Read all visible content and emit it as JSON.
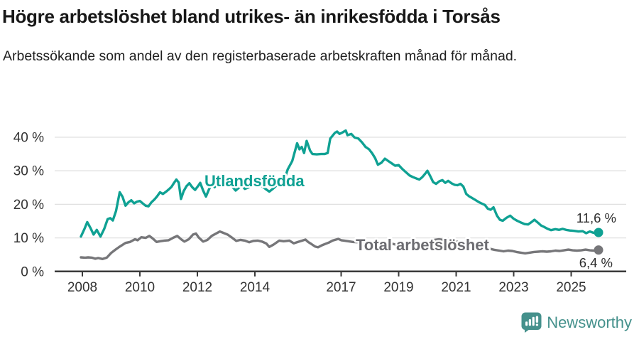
{
  "header": {
    "title": "Högre arbetslöshet bland utrikes- än inrikesfödda i Torsås",
    "subtitle": "Arbetssökande som andel av den registerbaserade arbetskraften månad för månad."
  },
  "footer": {
    "brand": "Newsworthy",
    "logo_icon": "newsworthy-speech-bubble-bar-chart-icon",
    "brand_color": "#45918c"
  },
  "chart_data": {
    "type": "line",
    "unit": "%",
    "grid": true,
    "x_axis": {
      "ticks": [
        2008,
        2010,
        2012,
        2014,
        2017,
        2019,
        2021,
        2023,
        2025
      ],
      "tick_labels": [
        "2008",
        "2010",
        "2012",
        "2014",
        "2017",
        "2019",
        "2021",
        "2023",
        "2025"
      ],
      "range": [
        2007.8,
        2026.3
      ]
    },
    "y_axis": {
      "ticks": [
        0,
        10,
        20,
        30,
        40
      ],
      "tick_labels": [
        "0 %",
        "10 %",
        "20 %",
        "30 %",
        "40 %"
      ],
      "range": [
        0,
        43
      ]
    },
    "series": [
      {
        "name": "Utlandsfödda",
        "color": "#0fa193",
        "label_color": "#0fa193",
        "end_label": "11,6 %",
        "end_value": 11.6,
        "points": [
          [
            2007.95,
            10.4
          ],
          [
            2008.08,
            12.8
          ],
          [
            2008.17,
            14.7
          ],
          [
            2008.28,
            13.0
          ],
          [
            2008.39,
            11.0
          ],
          [
            2008.5,
            12.4
          ],
          [
            2008.63,
            10.4
          ],
          [
            2008.76,
            12.7
          ],
          [
            2008.88,
            15.6
          ],
          [
            2008.97,
            15.9
          ],
          [
            2009.06,
            15.2
          ],
          [
            2009.17,
            18.0
          ],
          [
            2009.3,
            23.6
          ],
          [
            2009.4,
            22.2
          ],
          [
            2009.5,
            19.6
          ],
          [
            2009.6,
            20.6
          ],
          [
            2009.7,
            21.2
          ],
          [
            2009.8,
            20.3
          ],
          [
            2009.9,
            20.8
          ],
          [
            2010.0,
            21.0
          ],
          [
            2010.1,
            20.3
          ],
          [
            2010.2,
            19.6
          ],
          [
            2010.3,
            19.4
          ],
          [
            2010.4,
            20.6
          ],
          [
            2010.5,
            21.4
          ],
          [
            2010.6,
            22.4
          ],
          [
            2010.7,
            23.6
          ],
          [
            2010.8,
            23.1
          ],
          [
            2010.9,
            23.7
          ],
          [
            2011.0,
            24.4
          ],
          [
            2011.1,
            25.2
          ],
          [
            2011.18,
            26.3
          ],
          [
            2011.27,
            27.4
          ],
          [
            2011.35,
            26.5
          ],
          [
            2011.43,
            21.6
          ],
          [
            2011.52,
            23.9
          ],
          [
            2011.62,
            25.4
          ],
          [
            2011.72,
            26.3
          ],
          [
            2011.82,
            25.1
          ],
          [
            2011.92,
            24.3
          ],
          [
            2012.02,
            25.4
          ],
          [
            2012.1,
            26.4
          ],
          [
            2012.2,
            24.1
          ],
          [
            2012.3,
            22.3
          ],
          [
            2012.4,
            24.4
          ],
          [
            2012.5,
            26.0
          ],
          [
            2012.6,
            25.1
          ],
          [
            2012.7,
            26.4
          ],
          [
            2012.8,
            27.1
          ],
          [
            2012.9,
            26.2
          ],
          [
            2013.0,
            26.6
          ],
          [
            2013.1,
            26.1
          ],
          [
            2013.2,
            25.4
          ],
          [
            2013.33,
            24.1
          ],
          [
            2013.45,
            25.0
          ],
          [
            2013.55,
            25.6
          ],
          [
            2013.65,
            24.6
          ],
          [
            2013.8,
            25.1
          ],
          [
            2013.9,
            26.1
          ],
          [
            2014.0,
            26.6
          ],
          [
            2014.1,
            26.0
          ],
          [
            2014.25,
            25.4
          ],
          [
            2014.4,
            24.4
          ],
          [
            2014.5,
            23.8
          ],
          [
            2014.62,
            24.6
          ],
          [
            2014.75,
            25.6
          ],
          [
            2014.85,
            26.0
          ],
          [
            2014.93,
            26.2
          ],
          [
            2015.05,
            28.0
          ],
          [
            2015.14,
            30.4
          ],
          [
            2015.3,
            32.9
          ],
          [
            2015.47,
            38.2
          ],
          [
            2015.55,
            36.4
          ],
          [
            2015.63,
            37.1
          ],
          [
            2015.71,
            35.3
          ],
          [
            2015.8,
            38.9
          ],
          [
            2015.92,
            36.0
          ],
          [
            2016.0,
            35.0
          ],
          [
            2016.15,
            34.9
          ],
          [
            2016.3,
            35.0
          ],
          [
            2016.42,
            35.0
          ],
          [
            2016.53,
            35.3
          ],
          [
            2016.62,
            39.6
          ],
          [
            2016.78,
            41.3
          ],
          [
            2016.86,
            41.7
          ],
          [
            2016.94,
            41.0
          ],
          [
            2017.02,
            41.3
          ],
          [
            2017.1,
            41.7
          ],
          [
            2017.16,
            42.0
          ],
          [
            2017.22,
            40.6
          ],
          [
            2017.35,
            41.0
          ],
          [
            2017.47,
            39.9
          ],
          [
            2017.6,
            39.6
          ],
          [
            2017.72,
            38.5
          ],
          [
            2017.85,
            37.1
          ],
          [
            2017.97,
            36.4
          ],
          [
            2018.08,
            35.2
          ],
          [
            2018.18,
            33.8
          ],
          [
            2018.28,
            31.8
          ],
          [
            2018.4,
            32.4
          ],
          [
            2018.52,
            33.6
          ],
          [
            2018.64,
            32.9
          ],
          [
            2018.76,
            32.2
          ],
          [
            2018.88,
            31.5
          ],
          [
            2019.0,
            31.7
          ],
          [
            2019.12,
            30.6
          ],
          [
            2019.25,
            29.6
          ],
          [
            2019.38,
            28.6
          ],
          [
            2019.5,
            28.1
          ],
          [
            2019.62,
            27.7
          ],
          [
            2019.72,
            27.4
          ],
          [
            2019.82,
            28.1
          ],
          [
            2019.92,
            29.1
          ],
          [
            2020.0,
            30.0
          ],
          [
            2020.1,
            28.4
          ],
          [
            2020.2,
            26.6
          ],
          [
            2020.3,
            26.1
          ],
          [
            2020.42,
            26.9
          ],
          [
            2020.52,
            27.2
          ],
          [
            2020.62,
            26.4
          ],
          [
            2020.72,
            27.0
          ],
          [
            2020.85,
            26.2
          ],
          [
            2020.95,
            25.8
          ],
          [
            2021.05,
            25.7
          ],
          [
            2021.15,
            26.1
          ],
          [
            2021.25,
            25.3
          ],
          [
            2021.35,
            23.1
          ],
          [
            2021.45,
            22.4
          ],
          [
            2021.55,
            21.9
          ],
          [
            2021.65,
            21.4
          ],
          [
            2021.78,
            20.7
          ],
          [
            2021.9,
            20.2
          ],
          [
            2022.0,
            19.8
          ],
          [
            2022.1,
            18.7
          ],
          [
            2022.2,
            18.4
          ],
          [
            2022.3,
            19.1
          ],
          [
            2022.42,
            16.6
          ],
          [
            2022.52,
            15.4
          ],
          [
            2022.62,
            15.1
          ],
          [
            2022.75,
            16.0
          ],
          [
            2022.88,
            16.6
          ],
          [
            2023.0,
            15.7
          ],
          [
            2023.12,
            15.1
          ],
          [
            2023.25,
            14.6
          ],
          [
            2023.38,
            14.1
          ],
          [
            2023.5,
            14.0
          ],
          [
            2023.62,
            14.7
          ],
          [
            2023.72,
            15.4
          ],
          [
            2023.85,
            14.5
          ],
          [
            2023.95,
            13.7
          ],
          [
            2024.05,
            13.3
          ],
          [
            2024.18,
            12.7
          ],
          [
            2024.3,
            12.3
          ],
          [
            2024.45,
            12.6
          ],
          [
            2024.58,
            12.4
          ],
          [
            2024.7,
            12.7
          ],
          [
            2024.82,
            12.4
          ],
          [
            2024.95,
            12.2
          ],
          [
            2025.1,
            12.1
          ],
          [
            2025.25,
            11.9
          ],
          [
            2025.4,
            12.0
          ],
          [
            2025.52,
            11.4
          ],
          [
            2025.65,
            11.9
          ],
          [
            2025.78,
            11.5
          ],
          [
            2025.95,
            11.6
          ]
        ]
      },
      {
        "name": "Total arbetslöshet",
        "color": "#767679",
        "label_color": "#6d6d72",
        "end_label": "6,4 %",
        "end_value": 6.4,
        "points": [
          [
            2007.95,
            4.2
          ],
          [
            2008.1,
            4.1
          ],
          [
            2008.2,
            4.2
          ],
          [
            2008.33,
            4.1
          ],
          [
            2008.45,
            3.8
          ],
          [
            2008.55,
            4.0
          ],
          [
            2008.7,
            3.7
          ],
          [
            2008.85,
            4.1
          ],
          [
            2009.0,
            5.5
          ],
          [
            2009.15,
            6.5
          ],
          [
            2009.3,
            7.4
          ],
          [
            2009.5,
            8.5
          ],
          [
            2009.66,
            8.8
          ],
          [
            2009.83,
            9.6
          ],
          [
            2009.92,
            9.3
          ],
          [
            2010.05,
            10.2
          ],
          [
            2010.2,
            10.0
          ],
          [
            2010.33,
            10.6
          ],
          [
            2010.45,
            9.8
          ],
          [
            2010.58,
            8.8
          ],
          [
            2010.7,
            9.0
          ],
          [
            2010.85,
            9.2
          ],
          [
            2011.0,
            9.3
          ],
          [
            2011.15,
            10.0
          ],
          [
            2011.3,
            10.6
          ],
          [
            2011.45,
            9.5
          ],
          [
            2011.55,
            8.9
          ],
          [
            2011.7,
            9.6
          ],
          [
            2011.85,
            11.0
          ],
          [
            2011.95,
            11.3
          ],
          [
            2012.05,
            10.1
          ],
          [
            2012.2,
            8.9
          ],
          [
            2012.35,
            9.4
          ],
          [
            2012.5,
            10.6
          ],
          [
            2012.65,
            11.3
          ],
          [
            2012.78,
            11.9
          ],
          [
            2012.9,
            11.5
          ],
          [
            2013.05,
            11.0
          ],
          [
            2013.2,
            10.1
          ],
          [
            2013.35,
            9.1
          ],
          [
            2013.5,
            9.4
          ],
          [
            2013.65,
            9.2
          ],
          [
            2013.8,
            8.7
          ],
          [
            2013.95,
            9.1
          ],
          [
            2014.1,
            9.2
          ],
          [
            2014.25,
            8.9
          ],
          [
            2014.4,
            8.3
          ],
          [
            2014.5,
            7.3
          ],
          [
            2014.65,
            8.0
          ],
          [
            2014.85,
            9.2
          ],
          [
            2015.0,
            9.0
          ],
          [
            2015.2,
            9.2
          ],
          [
            2015.35,
            8.4
          ],
          [
            2015.5,
            8.8
          ],
          [
            2015.65,
            9.2
          ],
          [
            2015.76,
            9.5
          ],
          [
            2015.85,
            8.8
          ],
          [
            2015.96,
            8.2
          ],
          [
            2016.1,
            7.4
          ],
          [
            2016.2,
            7.2
          ],
          [
            2016.33,
            7.8
          ],
          [
            2016.45,
            8.2
          ],
          [
            2016.57,
            8.6
          ],
          [
            2016.7,
            9.2
          ],
          [
            2016.82,
            9.5
          ],
          [
            2016.9,
            9.7
          ],
          [
            2017.0,
            9.3
          ],
          [
            2017.1,
            9.2
          ],
          [
            2017.25,
            9.0
          ],
          [
            2017.4,
            8.8
          ],
          [
            2017.55,
            8.7
          ],
          [
            2017.7,
            8.9
          ],
          [
            2017.85,
            8.6
          ],
          [
            2018.0,
            8.4
          ],
          [
            2018.15,
            8.3
          ],
          [
            2018.3,
            8.1
          ],
          [
            2018.45,
            8.4
          ],
          [
            2018.6,
            8.5
          ],
          [
            2018.75,
            8.3
          ],
          [
            2018.9,
            8.0
          ],
          [
            2019.05,
            8.1
          ],
          [
            2019.2,
            8.3
          ],
          [
            2019.35,
            8.4
          ],
          [
            2019.5,
            8.2
          ],
          [
            2019.65,
            8.0
          ],
          [
            2019.8,
            7.9
          ],
          [
            2019.95,
            8.2
          ],
          [
            2020.1,
            8.8
          ],
          [
            2020.25,
            9.4
          ],
          [
            2020.4,
            9.6
          ],
          [
            2020.55,
            9.4
          ],
          [
            2020.7,
            9.2
          ],
          [
            2020.85,
            9.1
          ],
          [
            2021.0,
            8.9
          ],
          [
            2021.15,
            8.7
          ],
          [
            2021.3,
            8.5
          ],
          [
            2021.45,
            8.2
          ],
          [
            2021.6,
            8.0
          ],
          [
            2021.75,
            7.7
          ],
          [
            2021.9,
            7.3
          ],
          [
            2022.05,
            7.0
          ],
          [
            2022.2,
            6.7
          ],
          [
            2022.35,
            6.4
          ],
          [
            2022.5,
            6.2
          ],
          [
            2022.65,
            6.0
          ],
          [
            2022.8,
            6.2
          ],
          [
            2022.95,
            6.1
          ],
          [
            2023.1,
            5.8
          ],
          [
            2023.25,
            5.6
          ],
          [
            2023.4,
            5.4
          ],
          [
            2023.55,
            5.6
          ],
          [
            2023.7,
            5.8
          ],
          [
            2023.85,
            5.9
          ],
          [
            2024.0,
            6.0
          ],
          [
            2024.15,
            5.9
          ],
          [
            2024.3,
            6.0
          ],
          [
            2024.45,
            6.2
          ],
          [
            2024.6,
            6.1
          ],
          [
            2024.75,
            6.3
          ],
          [
            2024.9,
            6.5
          ],
          [
            2025.05,
            6.3
          ],
          [
            2025.2,
            6.2
          ],
          [
            2025.35,
            6.3
          ],
          [
            2025.5,
            6.5
          ],
          [
            2025.65,
            6.3
          ],
          [
            2025.8,
            6.2
          ],
          [
            2025.95,
            6.4
          ]
        ]
      }
    ]
  }
}
